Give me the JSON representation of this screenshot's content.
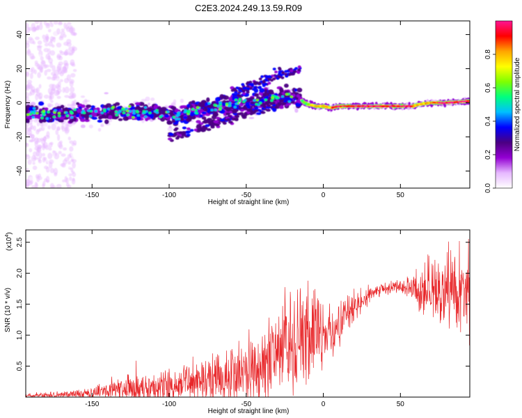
{
  "title": "C2E3.2024.249.13.59.R09",
  "chart_data": [
    {
      "type": "heatmap",
      "xlabel": "Height of straight line (km)",
      "ylabel": "Frequency (Hz)",
      "xlim": [
        -193,
        95
      ],
      "ylim": [
        -50,
        48
      ],
      "x_ticks": [
        -150,
        -100,
        -50,
        0,
        50
      ],
      "y_ticks": [
        -40,
        -20,
        0,
        20,
        40
      ],
      "grid": false,
      "colorbar": {
        "label": "Normalized spectral amplitude",
        "range": [
          0,
          1
        ],
        "ticks": [
          "0.0",
          "0.2",
          "0.4",
          "0.6",
          "0.8"
        ],
        "colors": [
          "#ffffff",
          "#e6b8ff",
          "#9400d3",
          "#4b0082",
          "#0000ff",
          "#00bfff",
          "#00ff7f",
          "#7fff00",
          "#ffff00",
          "#ffa500",
          "#ff0000",
          "#ff1493"
        ]
      },
      "ridge": {
        "x": [
          -193,
          -180,
          -165,
          -150,
          -130,
          -110,
          -95,
          -80,
          -65,
          -50,
          -35,
          -25,
          -15,
          -10,
          -5,
          0,
          5,
          10,
          20,
          30,
          40,
          50,
          58,
          62,
          70,
          80,
          95
        ],
        "frequency": [
          -6,
          -7,
          -6,
          -6,
          -5,
          -6,
          -8,
          -4,
          -2,
          0,
          2,
          3,
          2,
          -1,
          -2,
          -2,
          -3,
          -2,
          -2,
          -2,
          -2,
          -2,
          -2,
          -1,
          0,
          0,
          1
        ]
      }
    },
    {
      "type": "line",
      "xlabel": "Height of straight line (km)",
      "ylabel": "SNR (10 * v/v)",
      "y_multiplier": "(x10",
      "y_multiplier_exp": "4",
      "y_multiplier_close": ")",
      "xlim": [
        -193,
        95
      ],
      "ylim": [
        0,
        2.7
      ],
      "x_ticks": [
        -150,
        -100,
        -50,
        0,
        50
      ],
      "y_ticks": [
        0.5,
        1.0,
        1.5,
        2.0,
        2.5
      ],
      "y_tick_labels": [
        "0.5",
        "1.0",
        "1.5",
        "2.0",
        "2.5"
      ],
      "grid": false,
      "series": [
        {
          "color": "#e8272a",
          "x": [
            -193,
            -180,
            -170,
            -160,
            -150,
            -140,
            -130,
            -120,
            -110,
            -100,
            -90,
            -80,
            -70,
            -60,
            -50,
            -40,
            -35,
            -30,
            -25,
            -20,
            -15,
            -10,
            -5,
            0,
            5,
            10,
            15,
            20,
            25,
            30,
            35,
            40,
            45,
            50,
            55,
            60,
            65,
            70,
            75,
            80,
            85,
            90,
            95
          ],
          "y": [
            0.02,
            0.03,
            0.03,
            0.05,
            0.07,
            0.1,
            0.12,
            0.15,
            0.18,
            0.2,
            0.22,
            0.25,
            0.28,
            0.32,
            0.36,
            0.45,
            0.55,
            0.6,
            0.75,
            0.95,
            1.0,
            1.1,
            1.05,
            0.95,
            1.05,
            1.2,
            1.35,
            1.45,
            1.55,
            1.65,
            1.72,
            1.75,
            1.78,
            1.78,
            1.76,
            1.7,
            1.72,
            1.75,
            1.75,
            1.73,
            1.7,
            1.65,
            1.55
          ],
          "envelope": [
            0.04,
            0.05,
            0.06,
            0.08,
            0.1,
            0.15,
            0.2,
            0.25,
            0.3,
            0.3,
            0.3,
            0.35,
            0.4,
            0.45,
            0.5,
            0.6,
            0.7,
            0.75,
            0.9,
            0.95,
            0.9,
            0.8,
            0.7,
            0.55,
            0.45,
            0.35,
            0.3,
            0.25,
            0.2,
            0.15,
            0.12,
            0.1,
            0.1,
            0.12,
            0.15,
            0.3,
            0.4,
            0.5,
            0.6,
            0.7,
            0.75,
            0.8,
            0.85
          ]
        }
      ]
    }
  ]
}
